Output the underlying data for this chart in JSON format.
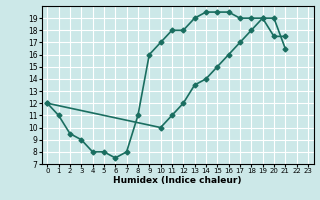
{
  "xlabel": "Humidex (Indice chaleur)",
  "bg_color": "#cce8e8",
  "grid_color": "#ffffff",
  "line_color": "#1a6e60",
  "xlim": [
    -0.5,
    23.5
  ],
  "ylim": [
    7,
    20
  ],
  "xticks": [
    0,
    1,
    2,
    3,
    4,
    5,
    6,
    7,
    8,
    9,
    10,
    11,
    12,
    13,
    14,
    15,
    16,
    17,
    18,
    19,
    20,
    21,
    22,
    23
  ],
  "yticks": [
    7,
    8,
    9,
    10,
    11,
    12,
    13,
    14,
    15,
    16,
    17,
    18,
    19
  ],
  "line1_x": [
    0,
    1,
    2,
    3,
    4,
    5,
    6,
    7,
    8,
    9,
    10,
    11,
    12,
    13,
    14,
    15,
    16,
    17,
    18,
    19,
    20,
    21,
    22,
    23
  ],
  "line1_y": [
    12,
    11,
    9.5,
    9,
    8,
    8,
    7.5,
    8,
    11,
    16,
    17,
    18,
    18,
    19,
    19.5,
    19.5,
    19.5,
    19,
    19,
    19,
    17.5,
    17.5,
    null,
    null
  ],
  "line2_x": [
    0,
    1,
    2,
    3,
    4,
    5,
    6,
    7,
    8,
    9,
    10,
    11,
    12,
    13,
    14,
    15,
    16,
    17,
    18,
    19,
    20,
    21,
    22,
    23
  ],
  "line2_y": [
    12,
    null,
    null,
    null,
    null,
    null,
    null,
    null,
    null,
    null,
    10,
    11,
    12,
    13.5,
    14,
    15,
    16,
    17,
    18,
    19,
    19,
    16.5,
    null,
    null
  ],
  "line3_x": [
    0,
    1,
    2,
    3,
    4,
    5,
    6,
    7,
    8,
    9,
    10,
    11,
    12,
    13,
    14,
    15,
    16,
    17,
    18,
    19,
    20,
    21,
    22,
    23
  ],
  "line3_y": [
    null,
    null,
    null,
    null,
    null,
    null,
    null,
    null,
    null,
    null,
    null,
    null,
    null,
    13.5,
    14,
    15,
    16,
    17,
    18,
    19,
    19,
    16.5,
    null,
    null
  ]
}
